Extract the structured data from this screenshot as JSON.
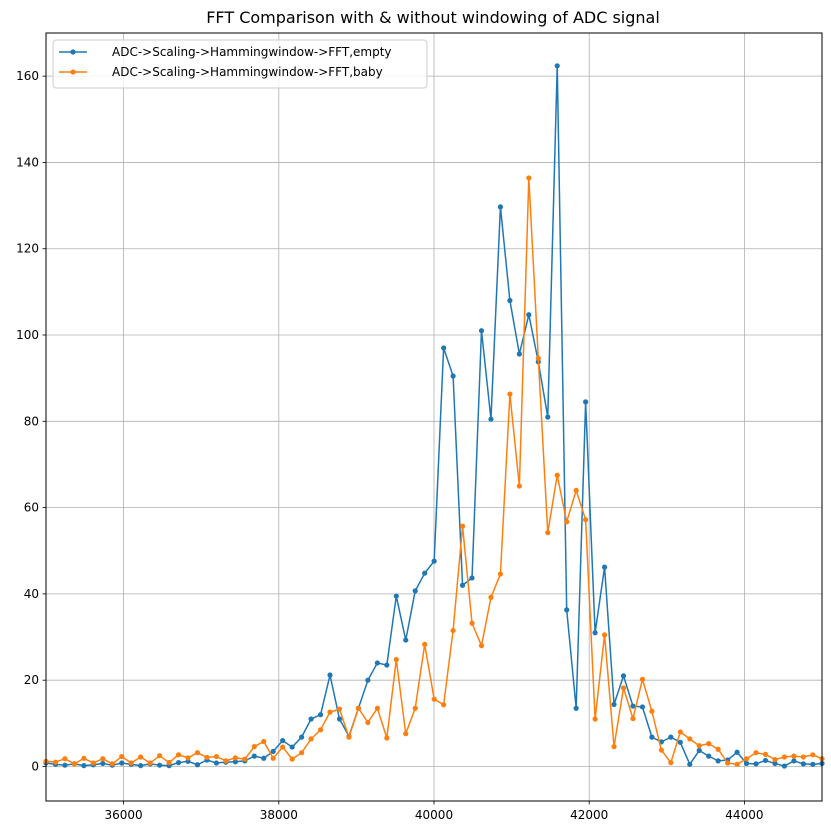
{
  "chart_data": {
    "type": "line",
    "title": "FFT Comparison with & without windowing of ADC signal",
    "xlabel": "",
    "ylabel": "",
    "xlim": [
      35000,
      45000
    ],
    "ylim": [
      -8,
      170
    ],
    "grid": true,
    "legend_position": "top-left",
    "x_ticks": [
      36000,
      38000,
      40000,
      42000,
      44000
    ],
    "x_tick_labels": [
      "36000",
      "38000",
      "40000",
      "42000",
      "44000"
    ],
    "y_ticks": [
      0,
      20,
      40,
      60,
      80,
      100,
      120,
      140,
      160
    ],
    "y_tick_labels": [
      "0",
      "20",
      "40",
      "60",
      "80",
      "100",
      "120",
      "140",
      "160"
    ],
    "series": [
      {
        "name": "ADC->Scaling->Hammingwindow->FFT,empty",
        "color": "#1f77b4",
        "x": [
          35000,
          35122,
          35244,
          35366,
          35488,
          35610,
          35732,
          35854,
          35976,
          36098,
          36220,
          36342,
          36464,
          36586,
          36708,
          36830,
          36952,
          37074,
          37196,
          37318,
          37440,
          37562,
          37684,
          37806,
          37928,
          38050,
          38172,
          38294,
          38416,
          38538,
          38660,
          38782,
          38904,
          39026,
          39148,
          39270,
          39392,
          39514,
          39636,
          39758,
          39880,
          40002,
          40124,
          40246,
          40368,
          40490,
          40612,
          40734,
          40856,
          40978,
          41100,
          41222,
          41344,
          41466,
          41588,
          41710,
          41832,
          41954,
          42076,
          42198,
          42320,
          42442,
          42564,
          42686,
          42808,
          42930,
          43052,
          43174,
          43296,
          43418,
          43540,
          43662,
          43784,
          43906,
          44028,
          44150,
          44272,
          44394,
          44516,
          44638,
          44760,
          44882,
          45000
        ],
        "values": [
          0.8,
          0.5,
          0.3,
          0.6,
          0.2,
          0.4,
          0.7,
          0.3,
          0.8,
          0.5,
          0.2,
          0.6,
          0.3,
          0.2,
          0.9,
          1.2,
          0.4,
          1.5,
          0.8,
          1.0,
          1.1,
          1.3,
          2.4,
          1.9,
          3.5,
          6.0,
          4.5,
          6.8,
          11.0,
          12.0,
          21.2,
          11.0,
          7.0,
          13.5,
          20.0,
          24.0,
          23.5,
          39.5,
          29.3,
          40.7,
          44.8,
          47.6,
          97.0,
          90.5,
          42.0,
          43.7,
          101.0,
          80.5,
          129.7,
          108.0,
          95.6,
          104.7,
          93.8,
          81.0,
          162.4,
          36.3,
          13.5,
          84.5,
          31.0,
          46.2,
          14.4,
          21.0,
          14.0,
          13.8,
          6.8,
          5.7,
          6.8,
          5.6,
          0.5,
          3.7,
          2.4,
          1.3,
          1.5,
          3.3,
          0.7,
          0.6,
          1.4,
          0.7,
          0.1,
          1.3,
          0.6,
          0.5,
          0.7
        ]
      },
      {
        "name": "ADC->Scaling->Hammingwindow->FFT,baby",
        "color": "#ff7f0e",
        "x": [
          35000,
          35122,
          35244,
          35366,
          35488,
          35610,
          35732,
          35854,
          35976,
          36098,
          36220,
          36342,
          36464,
          36586,
          36708,
          36830,
          36952,
          37074,
          37196,
          37318,
          37440,
          37562,
          37684,
          37806,
          37928,
          38050,
          38172,
          38294,
          38416,
          38538,
          38660,
          38782,
          38904,
          39026,
          39148,
          39270,
          39392,
          39514,
          39636,
          39758,
          39880,
          40002,
          40124,
          40246,
          40368,
          40490,
          40612,
          40734,
          40856,
          40978,
          41100,
          41222,
          41344,
          41466,
          41588,
          41710,
          41832,
          41954,
          42076,
          42198,
          42320,
          42442,
          42564,
          42686,
          42808,
          42930,
          43052,
          43174,
          43296,
          43418,
          43540,
          43662,
          43784,
          43906,
          44028,
          44150,
          44272,
          44394,
          44516,
          44638,
          44760,
          44882,
          45000
        ],
        "values": [
          1.2,
          1.0,
          1.8,
          0.6,
          1.9,
          0.8,
          1.8,
          0.6,
          2.3,
          0.8,
          2.2,
          0.8,
          2.5,
          0.9,
          2.7,
          2.0,
          3.2,
          2.1,
          2.3,
          1.3,
          2.0,
          1.7,
          4.6,
          5.8,
          1.9,
          4.5,
          1.7,
          3.2,
          6.4,
          8.5,
          12.6,
          13.3,
          6.8,
          13.5,
          10.2,
          13.5,
          6.6,
          24.8,
          7.6,
          13.5,
          28.3,
          15.6,
          14.3,
          31.5,
          55.7,
          33.2,
          28.0,
          39.2,
          44.6,
          86.3,
          65.0,
          136.4,
          94.6,
          54.2,
          67.5,
          56.7,
          64.0,
          57.2,
          11.0,
          30.5,
          4.6,
          18.2,
          11.1,
          20.2,
          12.8,
          3.8,
          0.9,
          8.0,
          6.4,
          4.8,
          5.3,
          4.0,
          0.8,
          0.5,
          1.8,
          3.2,
          2.8,
          1.6,
          2.2,
          2.4,
          2.2,
          2.7,
          1.8
        ]
      }
    ]
  }
}
